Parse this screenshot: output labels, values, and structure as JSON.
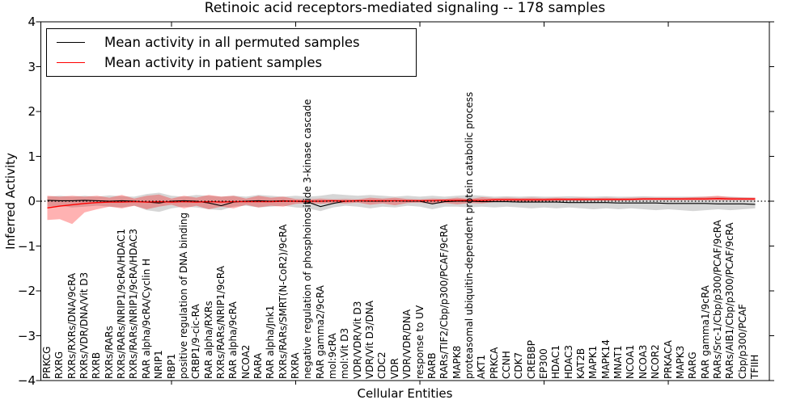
{
  "title": "Retinoic acid receptors-mediated signaling -- 178 samples",
  "legend": {
    "items": [
      {
        "label": "Mean activity in all permuted samples",
        "color": "#000000"
      },
      {
        "label": "Mean activity in patient samples",
        "color": "#ff0000"
      }
    ]
  },
  "axes": {
    "xlabel": "Cellular Entities",
    "ylabel": "Inferred Activity",
    "y_ticks": [
      {
        "v": 4,
        "label": "4"
      },
      {
        "v": 3,
        "label": "3"
      },
      {
        "v": 2,
        "label": "2"
      },
      {
        "v": 1,
        "label": "1"
      },
      {
        "v": 0,
        "label": "0"
      },
      {
        "v": -1,
        "label": "−1"
      },
      {
        "v": -2,
        "label": "−2"
      },
      {
        "v": -3,
        "label": "−3"
      },
      {
        "v": -4,
        "label": "−4"
      }
    ]
  },
  "chart_data": {
    "type": "line",
    "title": "Retinoic acid receptors-mediated signaling -- 178 samples",
    "xlabel": "Cellular Entities",
    "ylabel": "Inferred Activity",
    "ylim": [
      -4,
      4
    ],
    "x_major_tick_indices": [
      10,
      20,
      30,
      40,
      50
    ],
    "legend_position": "upper left",
    "grid": false,
    "zero_line": {
      "y": 0,
      "style": "dotted",
      "color": "#000000"
    },
    "categories": [
      "PRKCG",
      "RXRG",
      "RXRs/RXRs/DNA/9cRA",
      "RXRs/VDR/DNA/Vit D3",
      "RXRB",
      "RXRs/RARs",
      "RXRs/RARs/NRIP1/9cRA/HDAC1",
      "RXRs/RARs/NRIP1/9cRA/HDAC3",
      "RAR alpha/9cRA/Cyclin H",
      "NRIP1",
      "RBP1",
      "positive regulation of DNA binding",
      "CRBP1/9-cic-RA",
      "RAR alpha/RXRs",
      "RXRs/RARs/NRIP1/9cRA",
      "RAR alpha/9cRA",
      "NCOA2",
      "RARA",
      "RAR alpha/Jnk1",
      "RXRs/RARs/SMRT(N-CoR2)/9cRA",
      "RXRA",
      "negative regulation of phosphoinositide 3-kinase cascade",
      "RAR gamma2/9cRA",
      "mol:9cRA",
      "mol:Vit D3",
      "VDR/VDR/Vit D3",
      "VDR/Vit D3/DNA",
      "CDC2",
      "VDR",
      "VDR/VDR/DNA",
      "response to UV",
      "RARB",
      "RARs/TIF2/Cbp/p300/PCAF/9cRA",
      "MAPK8",
      "proteasomal ubiquitin-dependent protein catabolic process",
      "AKT1",
      "PRKCA",
      "CCNH",
      "CDK7",
      "CREBBP",
      "EP300",
      "HDAC1",
      "HDAC3",
      "KAT2B",
      "MAPK1",
      "MAPK14",
      "MNAT1",
      "NCOA1",
      "NCOA3",
      "NCOR2",
      "PRKACA",
      "MAPK3",
      "RARG",
      "RAR gamma1/9cRA",
      "RARs/Src-1/Cbp/p300/PCAF/9cRA",
      "RARs/AIB1/Cbp/p300/PCAF/9cRA",
      "Cbp/p300/PCAF",
      "TFIIH"
    ],
    "series": [
      {
        "name": "Mean activity in all permuted samples",
        "color": "#000000",
        "band_color": "#000000",
        "band_opacity": 0.16,
        "values": [
          0.02,
          0.01,
          0.01,
          0.02,
          0.01,
          0.0,
          0.01,
          0.0,
          -0.02,
          -0.04,
          0.0,
          0.01,
          0.0,
          -0.04,
          -0.1,
          -0.02,
          0.0,
          0.01,
          0.0,
          0.01,
          0.0,
          -0.02,
          -0.12,
          -0.05,
          0.0,
          0.01,
          0.0,
          0.0,
          0.01,
          0.0,
          0.0,
          -0.06,
          -0.01,
          0.0,
          0.0,
          -0.01,
          -0.01,
          -0.01,
          -0.02,
          -0.02,
          -0.02,
          -0.02,
          -0.03,
          -0.03,
          -0.03,
          -0.03,
          -0.04,
          -0.04,
          -0.04,
          -0.04,
          -0.05,
          -0.05,
          -0.05,
          -0.05,
          -0.06,
          -0.06,
          -0.06,
          -0.07
        ],
        "band_hi": [
          0.1,
          0.12,
          0.1,
          0.12,
          0.1,
          0.13,
          0.11,
          0.1,
          0.16,
          0.19,
          0.12,
          0.1,
          0.14,
          0.12,
          0.1,
          0.12,
          0.1,
          0.14,
          0.12,
          0.1,
          0.12,
          0.1,
          0.12,
          0.16,
          0.14,
          0.12,
          0.14,
          0.12,
          0.1,
          0.12,
          0.1,
          0.12,
          0.1,
          0.12,
          0.14,
          0.12,
          0.1,
          0.11,
          0.1,
          0.11,
          0.1,
          0.1,
          0.11,
          0.1,
          0.1,
          0.11,
          0.1,
          0.1,
          0.11,
          0.1,
          0.1,
          0.1,
          0.1,
          0.1,
          0.1,
          0.1,
          0.09,
          0.08
        ],
        "band_lo": [
          -0.12,
          -0.1,
          -0.14,
          -0.12,
          -0.1,
          -0.12,
          -0.14,
          -0.1,
          -0.2,
          -0.24,
          -0.16,
          -0.12,
          -0.14,
          -0.18,
          -0.2,
          -0.12,
          -0.1,
          -0.14,
          -0.12,
          -0.1,
          -0.14,
          -0.16,
          -0.22,
          -0.14,
          -0.1,
          -0.12,
          -0.16,
          -0.12,
          -0.14,
          -0.1,
          -0.12,
          -0.18,
          -0.12,
          -0.12,
          -0.14,
          -0.12,
          -0.14,
          -0.12,
          -0.14,
          -0.16,
          -0.14,
          -0.16,
          -0.14,
          -0.16,
          -0.18,
          -0.16,
          -0.18,
          -0.16,
          -0.18,
          -0.2,
          -0.18,
          -0.2,
          -0.22,
          -0.2,
          -0.18,
          -0.2,
          -0.18,
          -0.16
        ]
      },
      {
        "name": "Mean activity in patient samples",
        "color": "#ff0000",
        "band_color": "#ff0000",
        "band_opacity": 0.3,
        "values": [
          -0.15,
          -0.11,
          -0.08,
          -0.05,
          -0.03,
          -0.02,
          -0.02,
          -0.01,
          -0.02,
          -0.01,
          -0.02,
          -0.01,
          -0.02,
          -0.01,
          -0.02,
          -0.01,
          -0.01,
          -0.01,
          -0.01,
          0.0,
          0.0,
          0.0,
          0.0,
          0.01,
          0.0,
          0.01,
          0.01,
          0.01,
          0.01,
          0.01,
          0.01,
          0.01,
          0.02,
          0.02,
          0.02,
          0.02,
          0.03,
          0.03,
          0.03,
          0.03,
          0.03,
          0.04,
          0.04,
          0.04,
          0.04,
          0.04,
          0.04,
          0.04,
          0.05,
          0.05,
          0.05,
          0.05,
          0.05,
          0.05,
          0.06,
          0.05,
          0.05,
          0.05
        ],
        "band_hi": [
          0.12,
          0.1,
          0.12,
          0.1,
          0.12,
          0.08,
          0.14,
          0.06,
          0.12,
          0.15,
          0.06,
          0.12,
          0.08,
          0.14,
          0.1,
          0.12,
          0.06,
          0.12,
          0.08,
          0.1,
          0.05,
          0.04,
          0.06,
          0.04,
          0.05,
          0.04,
          0.08,
          0.06,
          0.08,
          0.05,
          0.04,
          0.06,
          0.05,
          0.08,
          0.05,
          0.09,
          0.07,
          0.08,
          0.07,
          0.08,
          0.07,
          0.08,
          0.07,
          0.08,
          0.07,
          0.08,
          0.07,
          0.08,
          0.08,
          0.08,
          0.08,
          0.08,
          0.09,
          0.1,
          0.12,
          0.09,
          0.08,
          0.08
        ],
        "band_lo": [
          -0.42,
          -0.4,
          -0.51,
          -0.25,
          -0.18,
          -0.12,
          -0.16,
          -0.1,
          -0.18,
          -0.12,
          -0.08,
          -0.16,
          -0.1,
          -0.18,
          -0.12,
          -0.16,
          -0.08,
          -0.14,
          -0.1,
          -0.12,
          -0.06,
          -0.04,
          -0.06,
          -0.04,
          -0.05,
          -0.03,
          -0.08,
          -0.05,
          -0.09,
          -0.04,
          -0.03,
          -0.06,
          -0.04,
          -0.07,
          -0.04,
          -0.05,
          -0.02,
          -0.02,
          -0.01,
          -0.02,
          0.0,
          0.0,
          0.01,
          0.0,
          0.01,
          0.01,
          0.01,
          0.02,
          0.02,
          0.02,
          0.02,
          0.02,
          0.02,
          0.02,
          0.02,
          0.02,
          0.02,
          0.02
        ]
      }
    ]
  }
}
